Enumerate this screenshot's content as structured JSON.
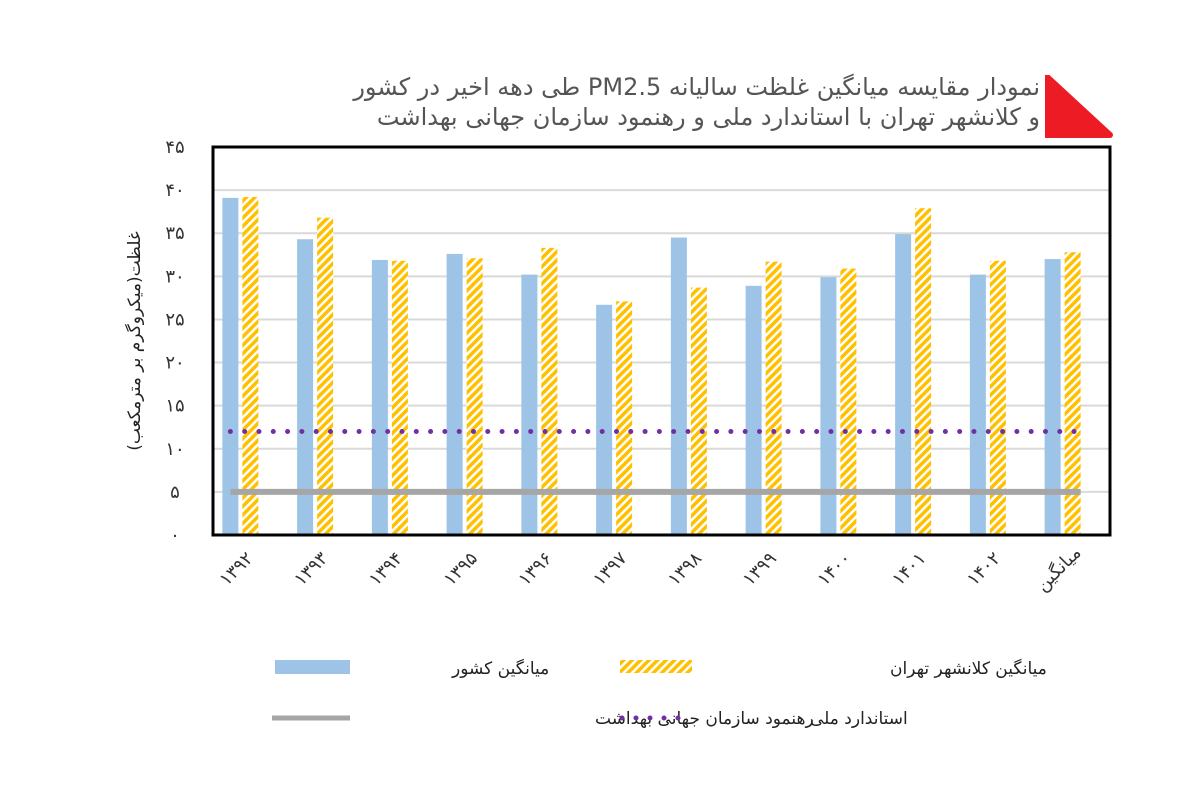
{
  "title": [
    "نمودار مقایسه میانگین غلظت سالیانه PM2.5 طی دهه اخیر در کشور",
    "و کلانشهر تهران با استاندارد ملی و رهنمود سازمان جهانی بهداشت"
  ],
  "colors": {
    "country": "#9dc3e6",
    "tehran": "#ffc000",
    "national": "#7030a0",
    "who": "#a6a6a6",
    "accent": "#ed1c24"
  },
  "chart_data": {
    "type": "bar",
    "title": "نمودار مقایسه میانگین غلظت سالیانه PM2.5 طی دهه اخیر در کشور و کلانشهر تهران با استاندارد ملی و رهنمود سازمان جهانی بهداشت",
    "ylabel": "غلظت(میکروگرم بر مترمکعب)",
    "ylim": [
      0,
      45
    ],
    "yticks": [
      "۰",
      "۵",
      "۱۰",
      "۱۵",
      "۲۰",
      "۲۵",
      "۳۰",
      "۳۵",
      "۴۰",
      "۴۵"
    ],
    "grid": true,
    "legend": "bottom",
    "categories": [
      "۱۳۹۲",
      "۱۳۹۳",
      "۱۳۹۴",
      "۱۳۹۵",
      "۱۳۹۶",
      "۱۳۹۷",
      "۱۳۹۸",
      "۱۳۹۹",
      "۱۴۰۰",
      "۱۴۰۱",
      "۱۴۰۲",
      "میانگین"
    ],
    "series": [
      {
        "name": "میانگین کشور",
        "type": "bar",
        "values": [
          39.1,
          34.3,
          31.9,
          32.6,
          30.2,
          26.7,
          34.5,
          28.9,
          29.9,
          34.9,
          30.2,
          32.0
        ]
      },
      {
        "name": "میانگین کلانشهر تهران",
        "type": "bar",
        "values": [
          39.2,
          36.8,
          31.8,
          32.1,
          33.3,
          27.1,
          28.7,
          31.7,
          30.9,
          37.9,
          31.8,
          32.8
        ]
      },
      {
        "name": "استاندارد ملی",
        "type": "line",
        "style": "dotted",
        "value": 12
      },
      {
        "name": "رهنمود سازمان جهانی بهداشت",
        "type": "line",
        "style": "solid",
        "value": 5
      }
    ]
  }
}
